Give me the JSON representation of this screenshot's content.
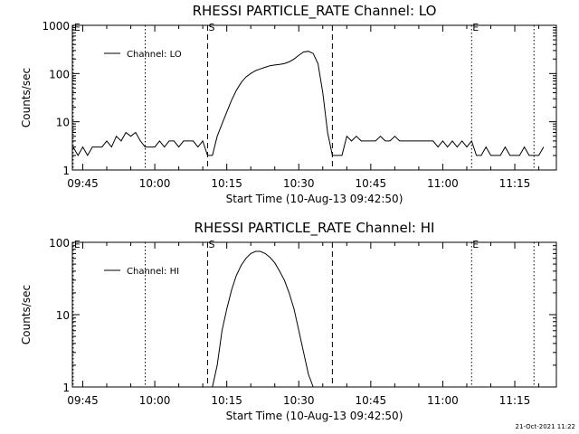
{
  "chart_data": [
    {
      "type": "line",
      "title": "RHESSI PARTICLE_RATE Channel: LO",
      "xlabel": "Start Time (10-Aug-13 09:42:50)",
      "ylabel": "Counts/sec",
      "yscale": "log",
      "ylim": [
        1,
        1000
      ],
      "xlim": [
        "09:42:50",
        "11:23:40"
      ],
      "yticks": [
        "1",
        "10",
        "100",
        "1000"
      ],
      "xticks": [
        "09:45",
        "10:00",
        "10:15",
        "10:30",
        "10:45",
        "11:00",
        "11:15"
      ],
      "legend": {
        "label": "Channel: LO",
        "position": "top-left"
      },
      "markers": [
        {
          "label": "E",
          "time": "09:43",
          "style": "dotted"
        },
        {
          "label": "",
          "time": "09:58",
          "style": "dotted"
        },
        {
          "label": "S",
          "time": "10:11",
          "style": "dashed"
        },
        {
          "label": "",
          "time": "10:37",
          "style": "dashed"
        },
        {
          "label": "E",
          "time": "11:06",
          "style": "dotted"
        },
        {
          "label": "",
          "time": "11:19",
          "style": "dotted"
        }
      ],
      "series": [
        {
          "name": "Channel: LO",
          "x": [
            "09:43",
            "09:44",
            "09:45",
            "09:46",
            "09:47",
            "09:48",
            "09:49",
            "09:50",
            "09:51",
            "09:52",
            "09:53",
            "09:54",
            "09:55",
            "09:56",
            "09:57",
            "09:58",
            "09:59",
            "10:00",
            "10:01",
            "10:02",
            "10:03",
            "10:04",
            "10:05",
            "10:06",
            "10:07",
            "10:08",
            "10:09",
            "10:10",
            "10:11",
            "10:12",
            "10:13",
            "10:14",
            "10:15",
            "10:16",
            "10:17",
            "10:18",
            "10:19",
            "10:20",
            "10:21",
            "10:22",
            "10:23",
            "10:24",
            "10:25",
            "10:26",
            "10:27",
            "10:28",
            "10:29",
            "10:30",
            "10:31",
            "10:32",
            "10:33",
            "10:34",
            "10:35",
            "10:36",
            "10:37",
            "10:38",
            "10:39",
            "10:40",
            "10:41",
            "10:42",
            "10:43",
            "10:44",
            "10:45",
            "10:46",
            "10:47",
            "10:48",
            "10:49",
            "10:50",
            "10:51",
            "10:52",
            "10:53",
            "10:54",
            "10:55",
            "10:56",
            "10:57",
            "10:58",
            "10:59",
            "11:00",
            "11:01",
            "11:02",
            "11:03",
            "11:04",
            "11:05",
            "11:06",
            "11:07",
            "11:08",
            "11:09",
            "11:10",
            "11:11",
            "11:12",
            "11:13",
            "11:14",
            "11:15",
            "11:16",
            "11:17",
            "11:18",
            "11:19",
            "11:20",
            "11:21"
          ],
          "values": [
            3,
            2,
            3,
            2,
            3,
            3,
            3,
            4,
            3,
            5,
            4,
            6,
            5,
            6,
            4,
            3,
            3,
            3,
            4,
            3,
            4,
            4,
            3,
            4,
            4,
            4,
            3,
            4,
            2,
            2,
            5,
            9,
            16,
            28,
            45,
            65,
            85,
            100,
            115,
            125,
            135,
            145,
            150,
            155,
            160,
            175,
            200,
            240,
            280,
            290,
            260,
            160,
            40,
            6,
            2,
            2,
            2,
            5,
            4,
            5,
            4,
            4,
            4,
            4,
            5,
            4,
            4,
            5,
            4,
            4,
            4,
            4,
            4,
            4,
            4,
            4,
            3,
            4,
            3,
            4,
            3,
            4,
            3,
            4,
            2,
            2,
            3,
            2,
            2,
            2,
            3,
            2,
            2,
            2,
            3,
            2,
            2,
            2,
            3
          ]
        }
      ]
    },
    {
      "type": "line",
      "title": "RHESSI PARTICLE_RATE Channel: HI",
      "xlabel": "Start Time (10-Aug-13 09:42:50)",
      "ylabel": "Counts/sec",
      "yscale": "log",
      "ylim": [
        1,
        100
      ],
      "xlim": [
        "09:42:50",
        "11:23:40"
      ],
      "yticks": [
        "1",
        "10",
        "100"
      ],
      "xticks": [
        "09:45",
        "10:00",
        "10:15",
        "10:30",
        "10:45",
        "11:00",
        "11:15"
      ],
      "legend": {
        "label": "Channel: HI",
        "position": "top-left"
      },
      "markers": [
        {
          "label": "E",
          "time": "09:43",
          "style": "dotted"
        },
        {
          "label": "",
          "time": "09:58",
          "style": "dotted"
        },
        {
          "label": "S",
          "time": "10:11",
          "style": "dashed"
        },
        {
          "label": "",
          "time": "10:37",
          "style": "dashed"
        },
        {
          "label": "E",
          "time": "11:06",
          "style": "dotted"
        },
        {
          "label": "",
          "time": "11:19",
          "style": "dotted"
        }
      ],
      "series": [
        {
          "name": "Channel: HI",
          "x": [
            "10:12",
            "10:13",
            "10:14",
            "10:15",
            "10:16",
            "10:17",
            "10:18",
            "10:19",
            "10:20",
            "10:21",
            "10:22",
            "10:23",
            "10:24",
            "10:25",
            "10:26",
            "10:27",
            "10:28",
            "10:29",
            "10:30",
            "10:31",
            "10:32",
            "10:33"
          ],
          "values": [
            1,
            2,
            6,
            12,
            22,
            35,
            48,
            60,
            70,
            75,
            75,
            70,
            62,
            52,
            40,
            30,
            20,
            12,
            6,
            3,
            1.5,
            1
          ]
        }
      ]
    }
  ],
  "footer": {
    "date_stamp": "21-Oct-2021 11:22"
  }
}
